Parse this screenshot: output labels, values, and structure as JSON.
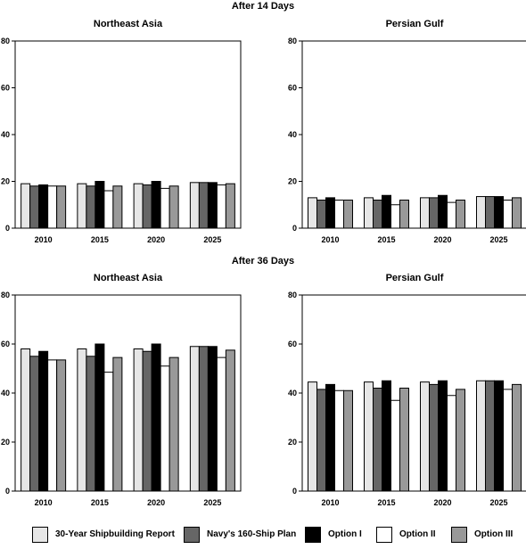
{
  "titles": {
    "section1": "After 14 Days",
    "section2": "After 36 Days"
  },
  "series_names": [
    "30-Year Shipbuilding Report",
    "Navy's 160-Ship Plan",
    "Option I",
    "Option II",
    "Option III"
  ],
  "series_colors": [
    "#e6e6e6",
    "#666666",
    "#000000",
    "#ffffff",
    "#999999"
  ],
  "chart_data": [
    {
      "type": "bar",
      "title": "Northeast Asia",
      "categories": [
        "2010",
        "2015",
        "2020",
        "2025"
      ],
      "ylim": [
        0,
        80
      ],
      "yticks": [
        "0",
        "20",
        "40",
        "60",
        "80"
      ],
      "series": [
        {
          "name": "30-Year Shipbuilding Report",
          "values": [
            19,
            19,
            19,
            19.5
          ]
        },
        {
          "name": "Navy's 160-Ship Plan",
          "values": [
            18,
            18,
            18.5,
            19.5
          ]
        },
        {
          "name": "Option I",
          "values": [
            18.5,
            20,
            20,
            19.5
          ]
        },
        {
          "name": "Option II",
          "values": [
            18,
            16,
            17,
            18.5
          ]
        },
        {
          "name": "Option III",
          "values": [
            18,
            18,
            18,
            19
          ]
        }
      ]
    },
    {
      "type": "bar",
      "title": "Persian Gulf",
      "categories": [
        "2010",
        "2015",
        "2020",
        "2025"
      ],
      "ylim": [
        0,
        80
      ],
      "yticks": [
        "0",
        "20",
        "40",
        "60",
        "80"
      ],
      "series": [
        {
          "name": "30-Year Shipbuilding Report",
          "values": [
            13,
            13,
            13,
            13.5
          ]
        },
        {
          "name": "Navy's 160-Ship Plan",
          "values": [
            12,
            12,
            13,
            13.5
          ]
        },
        {
          "name": "Option I",
          "values": [
            13,
            14,
            14,
            13.5
          ]
        },
        {
          "name": "Option II",
          "values": [
            12,
            10,
            11,
            12
          ]
        },
        {
          "name": "Option III",
          "values": [
            12,
            12,
            12,
            13
          ]
        }
      ]
    },
    {
      "type": "bar",
      "title": "Northeast Asia",
      "categories": [
        "2010",
        "2015",
        "2020",
        "2025"
      ],
      "ylim": [
        0,
        80
      ],
      "yticks": [
        "0",
        "20",
        "40",
        "60",
        "80"
      ],
      "series": [
        {
          "name": "30-Year Shipbuilding Report",
          "values": [
            58,
            58,
            58,
            59
          ]
        },
        {
          "name": "Navy's 160-Ship Plan",
          "values": [
            55,
            55,
            57,
            59
          ]
        },
        {
          "name": "Option I",
          "values": [
            57,
            60,
            60,
            59
          ]
        },
        {
          "name": "Option II",
          "values": [
            53.5,
            48.5,
            51,
            54.5
          ]
        },
        {
          "name": "Option III",
          "values": [
            53.5,
            54.5,
            54.5,
            57.5
          ]
        }
      ]
    },
    {
      "type": "bar",
      "title": "Persian Gulf",
      "categories": [
        "2010",
        "2015",
        "2020",
        "2025"
      ],
      "ylim": [
        0,
        80
      ],
      "yticks": [
        "0",
        "20",
        "40",
        "60",
        "80"
      ],
      "series": [
        {
          "name": "30-Year Shipbuilding Report",
          "values": [
            44.5,
            44.5,
            44.5,
            45
          ]
        },
        {
          "name": "Navy's 160-Ship Plan",
          "values": [
            41.5,
            42,
            43.5,
            45
          ]
        },
        {
          "name": "Option I",
          "values": [
            43.5,
            45,
            45,
            45
          ]
        },
        {
          "name": "Option II",
          "values": [
            41,
            37,
            39,
            41.5
          ]
        },
        {
          "name": "Option III",
          "values": [
            41,
            42,
            41.5,
            43.5
          ]
        }
      ]
    }
  ]
}
